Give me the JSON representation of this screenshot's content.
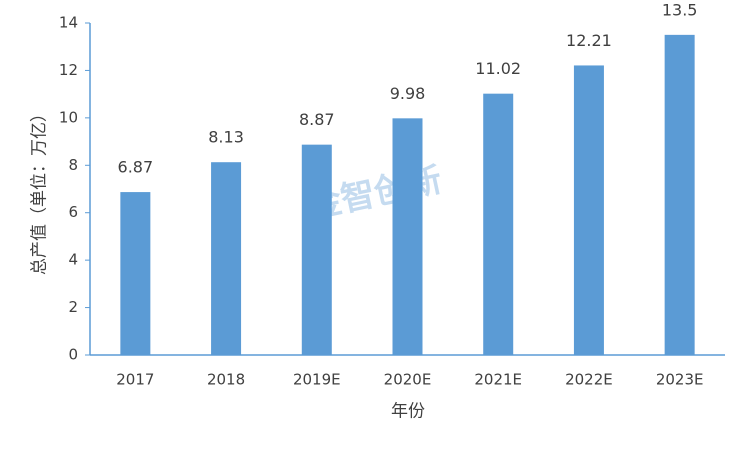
{
  "chart_data": {
    "type": "bar",
    "categories": [
      "2017",
      "2018",
      "2019E",
      "2020E",
      "2021E",
      "2022E",
      "2023E"
    ],
    "values": [
      6.87,
      8.13,
      8.87,
      9.98,
      11.02,
      12.21,
      13.5
    ],
    "color": "#5b9bd5",
    "ylim": [
      0,
      14
    ],
    "yticks": [
      0,
      2,
      4,
      6,
      8,
      10,
      12,
      14
    ],
    "grid": false,
    "y_label": "总产值（单位：万亿）",
    "x_label": "年份",
    "watermark": "金智创新"
  }
}
